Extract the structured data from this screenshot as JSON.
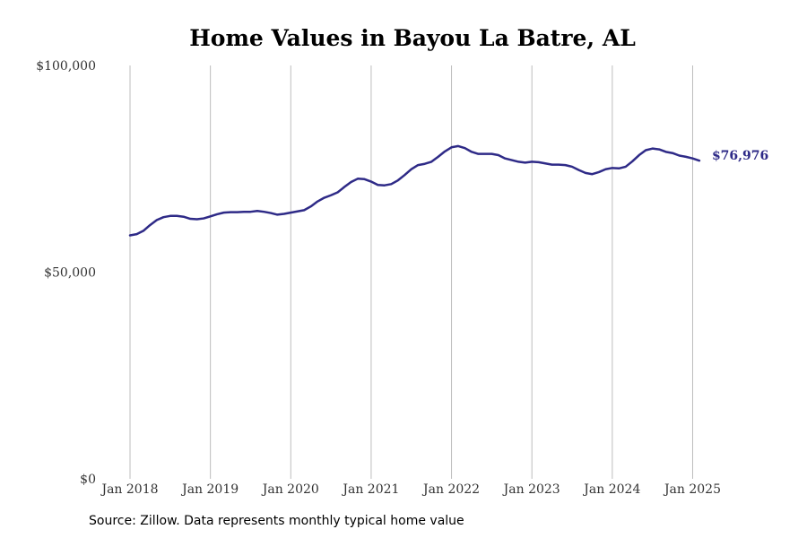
{
  "chart_data": {
    "type": "line",
    "title": "Home Values in Bayou La Batre, AL",
    "xlabel": "",
    "ylabel": "",
    "ylim": [
      0,
      100000
    ],
    "yticks": [
      {
        "value": 0,
        "label": "$0"
      },
      {
        "value": 50000,
        "label": "$50,000"
      },
      {
        "value": 100000,
        "label": "$100,000"
      }
    ],
    "xticks": [
      {
        "value": 0,
        "label": "Jan 2018"
      },
      {
        "value": 12,
        "label": "Jan 2019"
      },
      {
        "value": 24,
        "label": "Jan 2020"
      },
      {
        "value": 36,
        "label": "Jan 2021"
      },
      {
        "value": 48,
        "label": "Jan 2022"
      },
      {
        "value": 60,
        "label": "Jan 2023"
      },
      {
        "value": 72,
        "label": "Jan 2024"
      },
      {
        "value": 84,
        "label": "Jan 2025"
      }
    ],
    "x_range": [
      0,
      85
    ],
    "grid": {
      "vertical": true,
      "horizontal": false
    },
    "series": [
      {
        "color": "#2e2a87",
        "end_label": "$76,976",
        "values": [
          58900,
          59200,
          60000,
          61400,
          62600,
          63300,
          63600,
          63600,
          63400,
          62900,
          62800,
          63000,
          63500,
          64000,
          64400,
          64500,
          64500,
          64600,
          64600,
          64800,
          64600,
          64300,
          63900,
          64100,
          64400,
          64700,
          65000,
          65900,
          67100,
          68000,
          68600,
          69300,
          70600,
          71800,
          72600,
          72500,
          71900,
          71100,
          71000,
          71300,
          72200,
          73500,
          74900,
          75900,
          76200,
          76700,
          77900,
          79200,
          80200,
          80500,
          80000,
          79100,
          78600,
          78600,
          78600,
          78300,
          77500,
          77100,
          76700,
          76500,
          76700,
          76600,
          76300,
          76000,
          76000,
          75900,
          75500,
          74700,
          74000,
          73700,
          74200,
          74900,
          75200,
          75100,
          75500,
          76800,
          78300,
          79500,
          79900,
          79700,
          79100,
          78800,
          78200,
          77900,
          77500,
          76976
        ]
      }
    ]
  },
  "footer": {
    "source": "Source: Zillow. Data represents monthly typical home value"
  }
}
